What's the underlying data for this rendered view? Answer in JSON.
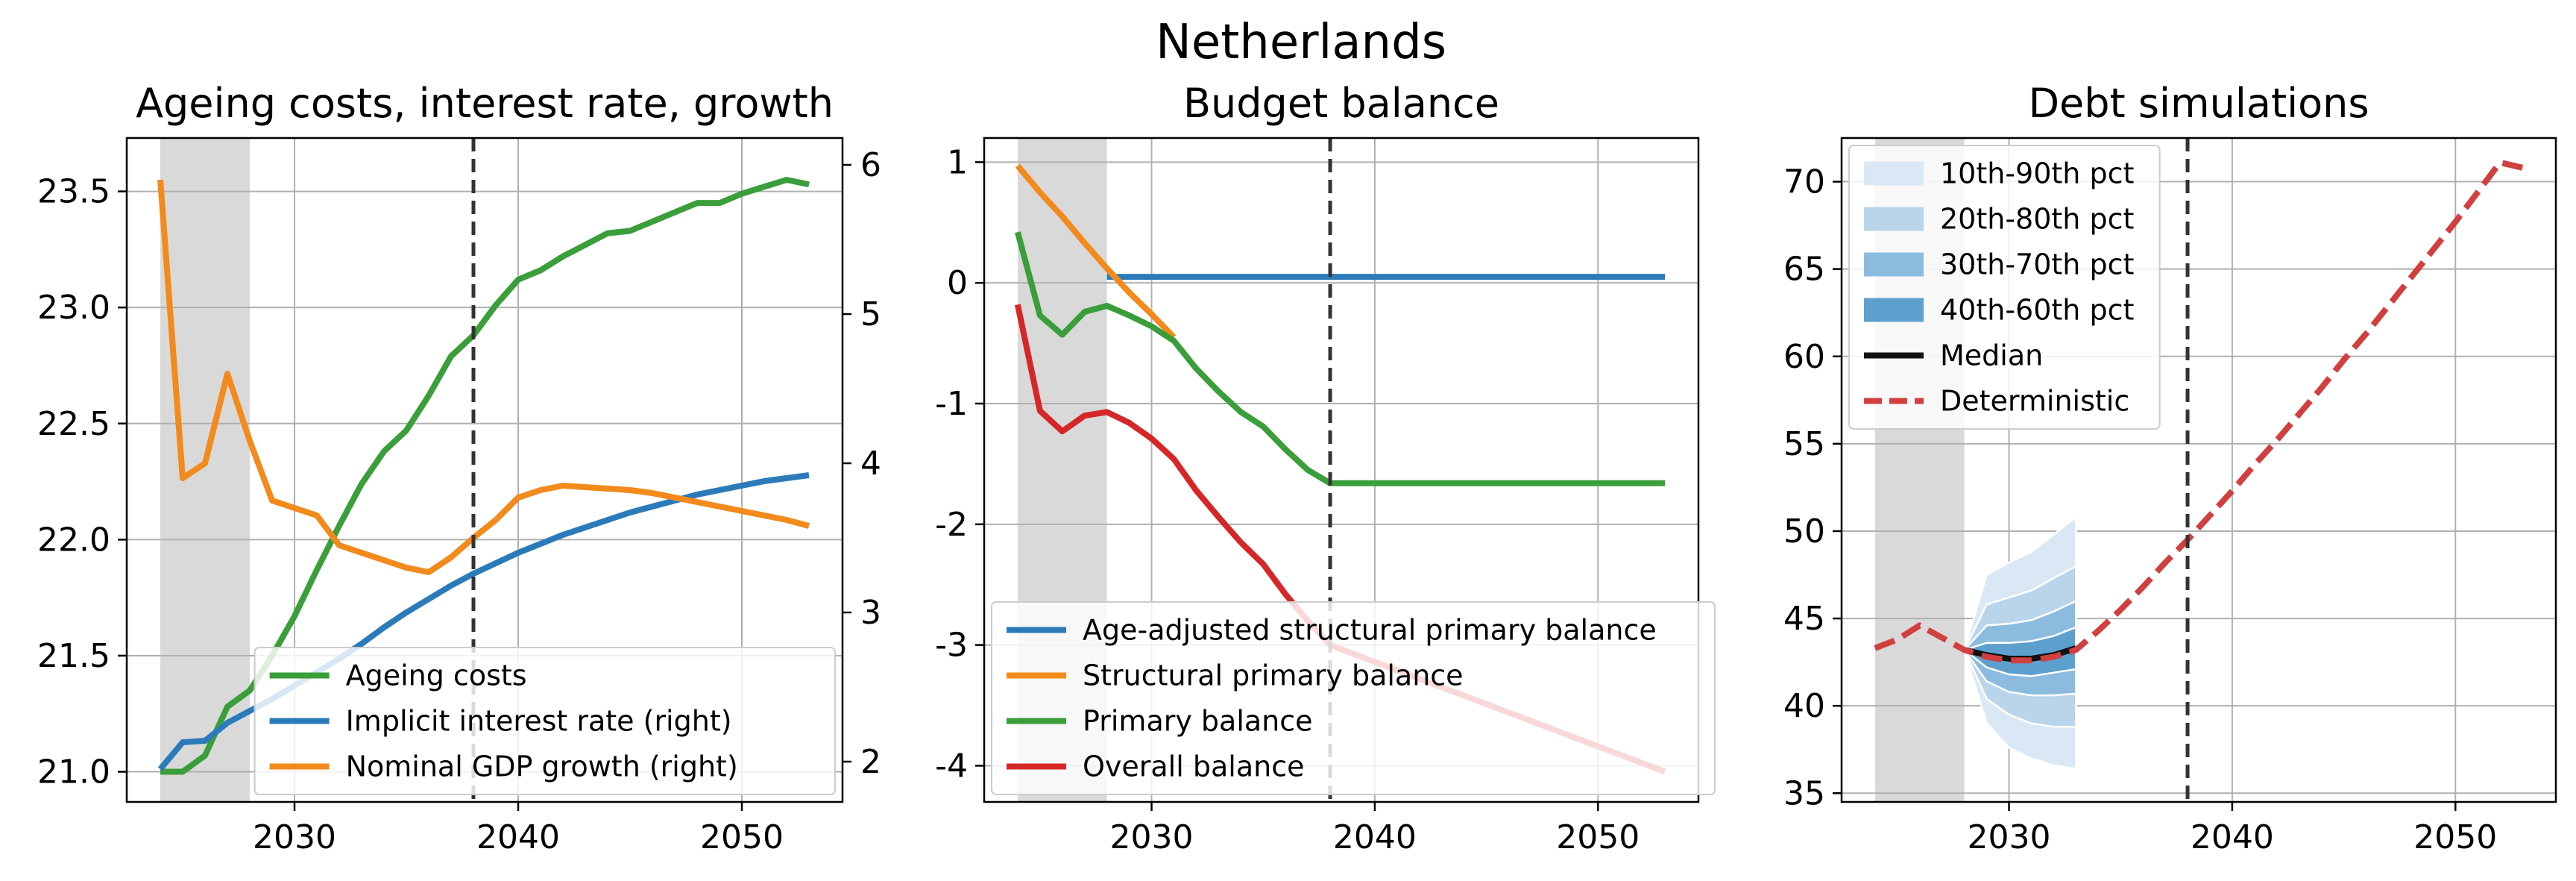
{
  "suptitle": "Netherlands",
  "chart_data": [
    {
      "type": "line",
      "title": "Ageing costs, interest rate, growth",
      "x_ticks": [
        2030,
        2040,
        2050
      ],
      "xlim": [
        2022.5,
        2054.5
      ],
      "ylim": [
        20.87,
        23.73
      ],
      "y_ticks": [
        21.0,
        21.5,
        22.0,
        22.5,
        23.0,
        23.5
      ],
      "y_tick_labels": [
        "21.0",
        "21.5",
        "22.0",
        "22.5",
        "23.0",
        "23.5"
      ],
      "y2lim": [
        1.73,
        6.18
      ],
      "y2_ticks": [
        2,
        3,
        4,
        5,
        6
      ],
      "y2_tick_labels": [
        "2",
        "3",
        "4",
        "5",
        "6"
      ],
      "shaded_x": [
        2024,
        2028
      ],
      "vline_x": 2038,
      "grid": true,
      "legend_position": "lower-right",
      "series": [
        {
          "name": "Ageing costs",
          "axis": "left",
          "color": "#3a9e3a",
          "x": [
            2024,
            2025,
            2026,
            2027,
            2028,
            2029,
            2030,
            2031,
            2032,
            2033,
            2034,
            2035,
            2036,
            2037,
            2038,
            2039,
            2040,
            2041,
            2042,
            2043,
            2044,
            2045,
            2046,
            2047,
            2048,
            2049,
            2050,
            2051,
            2052,
            2053
          ],
          "y": [
            21.0,
            21.0,
            21.07,
            21.28,
            21.35,
            21.5,
            21.67,
            21.87,
            22.06,
            22.24,
            22.38,
            22.47,
            22.62,
            22.79,
            22.88,
            23.01,
            23.12,
            23.16,
            23.22,
            23.27,
            23.32,
            23.33,
            23.37,
            23.41,
            23.45,
            23.45,
            23.49,
            23.52,
            23.55,
            23.53
          ]
        },
        {
          "name": "Implicit interest rate (right)",
          "axis": "right",
          "color": "#2b7bba",
          "x": [
            2024,
            2025,
            2026,
            2027,
            2028,
            2029,
            2030,
            2031,
            2032,
            2033,
            2034,
            2035,
            2036,
            2037,
            2038,
            2039,
            2040,
            2041,
            2042,
            2043,
            2044,
            2045,
            2046,
            2047,
            2048,
            2049,
            2050,
            2051,
            2052,
            2053
          ],
          "y": [
            1.95,
            2.13,
            2.14,
            2.26,
            2.34,
            2.42,
            2.51,
            2.6,
            2.69,
            2.79,
            2.9,
            3.0,
            3.09,
            3.18,
            3.26,
            3.33,
            3.4,
            3.46,
            3.52,
            3.57,
            3.62,
            3.67,
            3.71,
            3.75,
            3.79,
            3.82,
            3.85,
            3.88,
            3.9,
            3.92
          ]
        },
        {
          "name": "Nominal GDP growth (right)",
          "axis": "right",
          "color": "#f28a1c",
          "x": [
            2024,
            2025,
            2026,
            2027,
            2028,
            2029,
            2030,
            2031,
            2032,
            2033,
            2034,
            2035,
            2036,
            2037,
            2038,
            2039,
            2040,
            2041,
            2042,
            2043,
            2044,
            2045,
            2046,
            2047,
            2048,
            2049,
            2050,
            2051,
            2052,
            2053
          ],
          "y": [
            5.9,
            3.9,
            4.0,
            4.6,
            4.15,
            3.75,
            3.7,
            3.65,
            3.45,
            3.4,
            3.35,
            3.3,
            3.27,
            3.37,
            3.5,
            3.62,
            3.77,
            3.82,
            3.85,
            3.84,
            3.83,
            3.82,
            3.8,
            3.77,
            3.74,
            3.71,
            3.68,
            3.65,
            3.62,
            3.58
          ]
        }
      ]
    },
    {
      "type": "line",
      "title": "Budget balance",
      "x_ticks": [
        2030,
        2040,
        2050
      ],
      "xlim": [
        2022.5,
        2054.5
      ],
      "ylim": [
        -4.3,
        1.2
      ],
      "y_ticks": [
        1,
        0,
        -1,
        -2,
        -3,
        -4
      ],
      "y_tick_labels": [
        "1",
        "0",
        "-1",
        "-2",
        "-3",
        "-4"
      ],
      "shaded_x": [
        2024,
        2028
      ],
      "vline_x": 2038,
      "grid": true,
      "legend_position": "lower-left",
      "series": [
        {
          "name": "Age-adjusted structural primary balance",
          "color": "#2b7bba",
          "x": [
            2028,
            2053
          ],
          "y": [
            0.05,
            0.05
          ]
        },
        {
          "name": "Structural primary balance",
          "color": "#f28a1c",
          "x": [
            2024,
            2025,
            2026,
            2027,
            2028,
            2029,
            2030,
            2031
          ],
          "y": [
            0.97,
            0.75,
            0.55,
            0.33,
            0.12,
            -0.08,
            -0.26,
            -0.45
          ]
        },
        {
          "name": "Primary balance",
          "color": "#3a9e3a",
          "x": [
            2024,
            2025,
            2026,
            2027,
            2028,
            2029,
            2030,
            2031,
            2032,
            2033,
            2034,
            2035,
            2036,
            2037,
            2038,
            2053
          ],
          "y": [
            0.42,
            -0.27,
            -0.43,
            -0.24,
            -0.19,
            -0.27,
            -0.36,
            -0.48,
            -0.71,
            -0.9,
            -1.07,
            -1.19,
            -1.38,
            -1.55,
            -1.66,
            -1.66
          ]
        },
        {
          "name": "Overall balance",
          "color": "#d62728",
          "x": [
            2024,
            2025,
            2026,
            2027,
            2028,
            2029,
            2030,
            2031,
            2032,
            2033,
            2034,
            2035,
            2036,
            2037,
            2038,
            2053
          ],
          "y": [
            -0.18,
            -1.06,
            -1.23,
            -1.1,
            -1.07,
            -1.16,
            -1.29,
            -1.46,
            -1.72,
            -1.94,
            -2.15,
            -2.33,
            -2.58,
            -2.8,
            -3.0,
            -4.05
          ]
        }
      ]
    },
    {
      "type": "area",
      "title": "Debt simulations",
      "x_ticks": [
        2030,
        2040,
        2050
      ],
      "xlim": [
        2022.5,
        2054.5
      ],
      "ylim": [
        34.5,
        72.5
      ],
      "y_ticks": [
        35,
        40,
        45,
        50,
        55,
        60,
        65,
        70
      ],
      "y_tick_labels": [
        "35",
        "40",
        "45",
        "50",
        "55",
        "60",
        "65",
        "70"
      ],
      "shaded_x": [
        2024,
        2028
      ],
      "vline_x": 2038,
      "grid": true,
      "legend_position": "upper-left",
      "fan_x": [
        2028,
        2029,
        2030,
        2031,
        2032,
        2033
      ],
      "bands": [
        {
          "name": "10th-90th pct",
          "color": "#dae8f5",
          "lower": [
            43.2,
            39.0,
            37.6,
            37.0,
            36.6,
            36.4
          ],
          "upper": [
            43.2,
            47.5,
            48.2,
            48.8,
            49.8,
            50.8
          ]
        },
        {
          "name": "20th-80th pct",
          "color": "#b9d5eb",
          "lower": [
            43.2,
            40.4,
            39.5,
            39.0,
            38.8,
            38.8
          ],
          "upper": [
            43.2,
            45.8,
            46.2,
            46.6,
            47.3,
            48.0
          ]
        },
        {
          "name": "30th-70th pct",
          "color": "#8bbcdf",
          "lower": [
            43.2,
            41.4,
            40.8,
            40.6,
            40.6,
            40.7
          ],
          "upper": [
            43.2,
            44.6,
            44.7,
            44.9,
            45.4,
            46.0
          ]
        },
        {
          "name": "40th-60th pct",
          "color": "#5da0ce",
          "lower": [
            43.2,
            42.2,
            41.8,
            41.7,
            41.9,
            42.1
          ],
          "upper": [
            43.2,
            43.6,
            43.6,
            43.7,
            44.0,
            44.5
          ]
        }
      ],
      "series": [
        {
          "name": "Median",
          "color": "#111111",
          "style": "solid",
          "x": [
            2028,
            2029,
            2030,
            2031,
            2032,
            2033
          ],
          "y": [
            43.2,
            42.9,
            42.7,
            42.7,
            42.9,
            43.3
          ]
        },
        {
          "name": "Deterministic",
          "color": "#d23f3f",
          "style": "dashed",
          "x": [
            2024,
            2025,
            2026,
            2027,
            2028,
            2029,
            2030,
            2031,
            2032,
            2033,
            2034,
            2035,
            2036,
            2037,
            2038,
            2039,
            2040,
            2041,
            2042,
            2043,
            2044,
            2045,
            2046,
            2047,
            2048,
            2049,
            2050,
            2051,
            2052,
            2053
          ],
          "y": [
            43.3,
            43.8,
            44.6,
            43.9,
            43.2,
            42.8,
            42.6,
            42.6,
            42.8,
            43.2,
            44.3,
            45.5,
            46.8,
            48.2,
            49.5,
            50.9,
            52.3,
            53.8,
            55.2,
            56.7,
            58.2,
            59.8,
            61.3,
            62.9,
            64.5,
            66.1,
            67.7,
            69.4,
            71.1,
            70.8
          ]
        }
      ]
    }
  ]
}
